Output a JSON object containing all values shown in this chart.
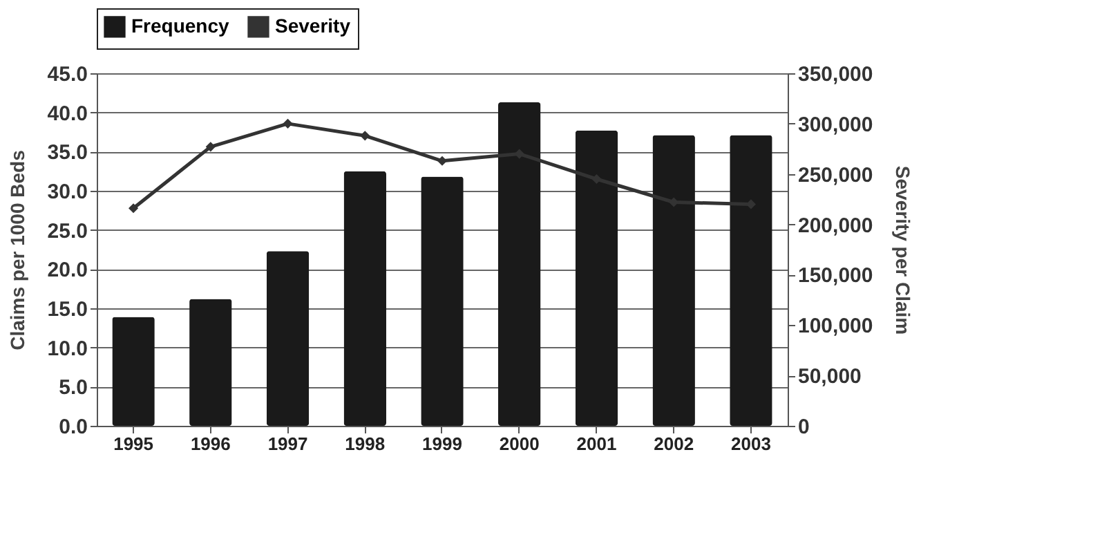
{
  "chart_data": {
    "type": "bar",
    "categories": [
      "1995",
      "1996",
      "1997",
      "1998",
      "1999",
      "2000",
      "2001",
      "2002",
      "2003"
    ],
    "ylabel": "Claims per 1000 Beds",
    "y2label": "Severity per Claim",
    "series": [
      {
        "name": "Frequency",
        "color": "#1a1a1a",
        "values": [
          13.9,
          16.2,
          22.3,
          32.5,
          31.8,
          41.3,
          37.7,
          37.1,
          37.1
        ]
      },
      {
        "name": "Severity",
        "type": "line",
        "axis": "y2",
        "color": "#333333",
        "values": [
          216000,
          277000,
          300000,
          288000,
          263000,
          270000,
          245000,
          222000,
          220000
        ]
      }
    ],
    "ylim": [
      0,
      45
    ],
    "yticks": [
      {
        "value": 0,
        "label": "0.0"
      },
      {
        "value": 5,
        "label": "5.0"
      },
      {
        "value": 10,
        "label": "10.0"
      },
      {
        "value": 15,
        "label": "15.0"
      },
      {
        "value": 20,
        "label": "20.0"
      },
      {
        "value": 25,
        "label": "25.0"
      },
      {
        "value": 30,
        "label": "30.0"
      },
      {
        "value": 35,
        "label": "35.0"
      },
      {
        "value": 40,
        "label": "40.0"
      },
      {
        "value": 45,
        "label": "45.0"
      }
    ],
    "y2lim": [
      0,
      350000
    ],
    "y2ticks": [
      {
        "value": 0,
        "label": "0"
      },
      {
        "value": 50000,
        "label": "50,000"
      },
      {
        "value": 100000,
        "label": "100,000"
      },
      {
        "value": 150000,
        "label": "150,000"
      },
      {
        "value": 200000,
        "label": "200,000"
      },
      {
        "value": 250000,
        "label": "250,000"
      },
      {
        "value": 300000,
        "label": "300,000"
      },
      {
        "value": 350000,
        "label": "350,000"
      }
    ],
    "grid": "y",
    "legend": "top",
    "marker": "diamond",
    "line_style": "solid"
  }
}
